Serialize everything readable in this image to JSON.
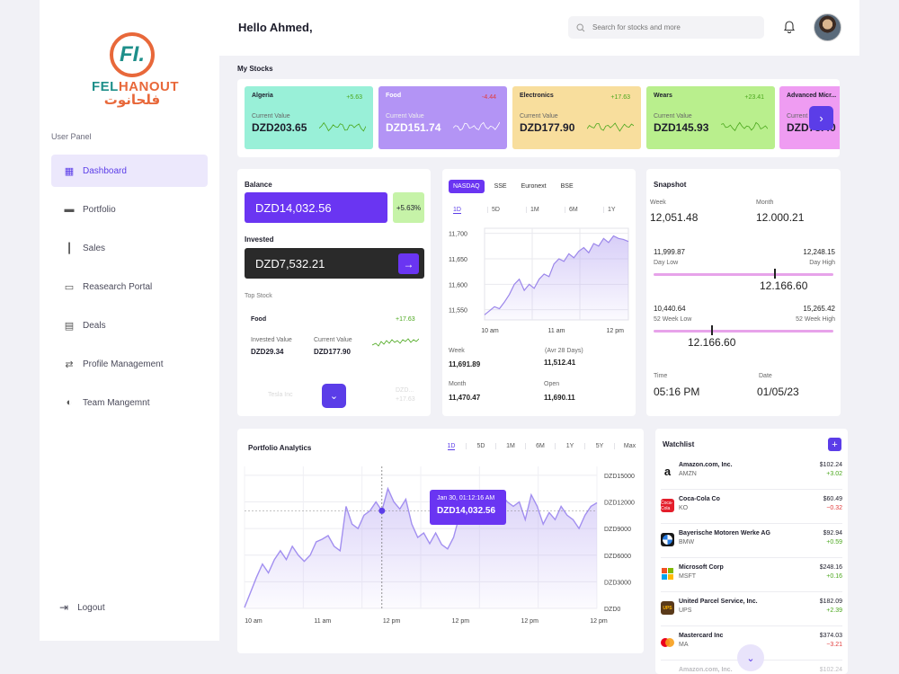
{
  "brand": {
    "mark": "FI.",
    "name_a": "FEL",
    "name_b": "HANOUT",
    "name_ar": "فلحانوت"
  },
  "sidebar": {
    "panel_label": "User Panel",
    "items": [
      {
        "label": "Dashboard",
        "icon": "dashboard-icon"
      },
      {
        "label": "Portfolio",
        "icon": "briefcase-icon"
      },
      {
        "label": "Sales",
        "icon": "candlestick-icon"
      },
      {
        "label": "Reasearch Portal",
        "icon": "card-icon"
      },
      {
        "label": "Deals",
        "icon": "deals-icon"
      },
      {
        "label": "Profile Management",
        "icon": "swap-icon"
      },
      {
        "label": "Team Mangemnt",
        "icon": "team-icon"
      }
    ],
    "logout": "Logout"
  },
  "header": {
    "greeting": "Hello Ahmed,",
    "search_placeholder": "Search for stocks and more"
  },
  "my_stocks": {
    "title": "My Stocks",
    "cards": [
      {
        "name": "Algeria",
        "change": "+5.63",
        "label": "Current Value",
        "value": "DZD203.65",
        "color": "#99f0d8"
      },
      {
        "name": "Food",
        "change": "-4.44",
        "label": "Current Value",
        "value": "DZD151.74",
        "color": "#b394f5"
      },
      {
        "name": "Electronics",
        "change": "+17.63",
        "label": "Current Value",
        "value": "DZD177.90",
        "color": "#f8de9d"
      },
      {
        "name": "Wears",
        "change": "+23.41",
        "label": "Current Value",
        "value": "DZD145.93",
        "color": "#b9ef8d"
      },
      {
        "name": "Advanced Micr...",
        "change": "",
        "label": "Current",
        "value": "DZD75.40",
        "color": "#ef9cf2"
      }
    ]
  },
  "balance": {
    "title": "Balance",
    "value": "DZD14,032.56",
    "change": "+5.63%",
    "invested_title": "Invested",
    "invested_value": "DZD7,532.21",
    "top_stock_title": "Top Stock",
    "top": {
      "name": "Food",
      "change": "+17.63",
      "inv_label": "Invested Value",
      "inv_value": "DZD29.34",
      "cur_label": "Current Value",
      "cur_value": "DZD177.90"
    },
    "ghost_name": "Tesla Inc",
    "ghost_a": "DZD...",
    "ghost_b": "+17.63"
  },
  "market": {
    "exchanges": [
      "NASDAQ",
      "SSE",
      "Euronext",
      "BSE"
    ],
    "ranges": [
      "1D",
      "5D",
      "1M",
      "6M",
      "1Y"
    ],
    "stats": {
      "week_label": "Week",
      "week_value": "11,691.89",
      "avr_label": "(Avr 28 Days)",
      "avr_value": "11,512.41",
      "month_label": "Month",
      "month_value": "11,470.47",
      "open_label": "Open",
      "open_value": "11,690.11"
    }
  },
  "snapshot": {
    "title": "Snapshot",
    "week_label": "Week",
    "week_value": "12,051.48",
    "month_label": "Month",
    "month_value": "12.000.21",
    "day_low": "11,999.87",
    "day_low_label": "Day Low",
    "day_high": "12,248.15",
    "day_high_label": "Day High",
    "day_current": "12.166.60",
    "day_position": 0.67,
    "wk52_low": "10,440.64",
    "wk52_low_label": "52 Week Low",
    "wk52_high": "15,265.42",
    "wk52_high_label": "52 Week High",
    "wk52_current": "12.166.60",
    "wk52_position": 0.32,
    "time_label": "Time",
    "time_value": "05:16 PM",
    "date_label": "Date",
    "date_value": "01/05/23"
  },
  "analytics": {
    "title": "Portfolio Analytics",
    "ranges": [
      "1D",
      "5D",
      "1M",
      "6M",
      "1Y",
      "5Y",
      "Max"
    ],
    "tooltip_date": "Jan 30, 01:12:16 AM",
    "tooltip_value": "DZD14,032.56"
  },
  "watchlist": {
    "title": "Watchlist",
    "items": [
      {
        "name": "Amazon.com, Inc.",
        "ticker": "AMZN",
        "price": "$102.24",
        "change": "+3.02",
        "dir": "up",
        "logo_color": "#ffffff",
        "logo": "a"
      },
      {
        "name": "Coca-Cola Co",
        "ticker": "KO",
        "price": "$60.49",
        "change": "−0.32",
        "dir": "dn",
        "logo_color": "#e41e2b",
        "logo": "c"
      },
      {
        "name": "Bayerische Motoren Werke AG",
        "ticker": "BMW",
        "price": "$92.94",
        "change": "+0.59",
        "dir": "up",
        "logo_color": "#1b1b1b",
        "logo": "b"
      },
      {
        "name": "Microsoft Corp",
        "ticker": "MSFT",
        "price": "$248.16",
        "change": "+0.16",
        "dir": "up",
        "logo_color": "#f25022",
        "logo": "m"
      },
      {
        "name": "United Parcel Service, Inc.",
        "ticker": "UPS",
        "price": "$182.09",
        "change": "+2.39",
        "dir": "up",
        "logo_color": "#5a3a1a",
        "logo": "u"
      },
      {
        "name": "Mastercard Inc",
        "ticker": "MA",
        "price": "$374.03",
        "change": "−3.21",
        "dir": "dn",
        "logo_color": "#ffffff",
        "logo": "mc"
      },
      {
        "name": "Amazon.com, Inc.",
        "ticker": "",
        "price": "$102.24",
        "change": "",
        "dir": "up",
        "logo_color": "#ffffff",
        "logo": "a"
      }
    ]
  },
  "chart_data": [
    {
      "type": "area",
      "title": "",
      "x_ticks": [
        "10 am",
        "11 am",
        "12 pm"
      ],
      "y_ticks": [
        11700,
        11650,
        11600,
        11550
      ],
      "ylim": [
        11530,
        11710
      ],
      "values": [
        11540,
        11548,
        11556,
        11552,
        11565,
        11580,
        11600,
        11610,
        11588,
        11600,
        11592,
        11610,
        11620,
        11615,
        11640,
        11650,
        11645,
        11660,
        11652,
        11665,
        11672,
        11662,
        11680,
        11675,
        11690,
        11682,
        11695,
        11690,
        11688,
        11684
      ],
      "grid": true
    },
    {
      "type": "area",
      "title": "Portfolio Analytics",
      "x_ticks": [
        "10 am",
        "11 am",
        "12 pm",
        "12 pm",
        "12 pm",
        "12 pm"
      ],
      "y_ticks": [
        "DZD15000",
        "DZD12000",
        "DZD9000",
        "DZD6000",
        "DZD3000",
        "DZD0"
      ],
      "ylim": [
        0,
        16000
      ],
      "values": [
        100,
        1800,
        3500,
        5000,
        4000,
        5500,
        6500,
        5500,
        7000,
        6000,
        5300,
        6000,
        7500,
        7800,
        8200,
        7000,
        6500,
        11500,
        9500,
        9000,
        10500,
        11000,
        12000,
        11000,
        13500,
        12000,
        11200,
        12300,
        9500,
        8000,
        8500,
        7300,
        8500,
        7200,
        6700,
        8000,
        10500,
        11000,
        10000,
        12500,
        11800,
        12500,
        11000,
        12800,
        12000,
        11500,
        12000,
        10000,
        12800,
        11500,
        9500,
        10800,
        10000,
        11500,
        10500,
        10000,
        9000,
        10500,
        11500,
        11900
      ],
      "highlight_index": 23,
      "grid": true
    }
  ]
}
